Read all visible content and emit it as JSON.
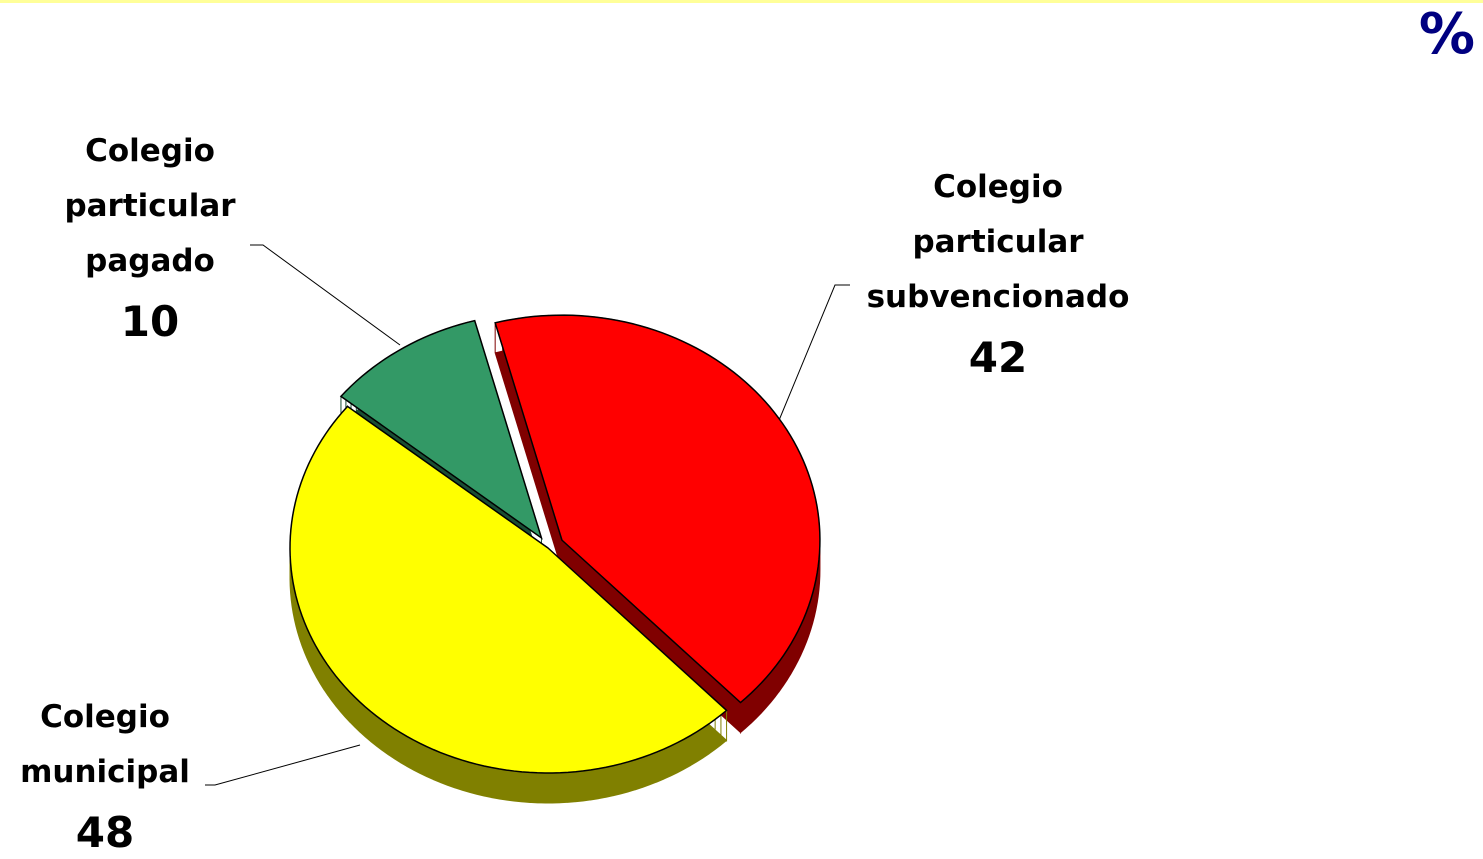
{
  "chart_data": {
    "type": "pie",
    "unit": "%",
    "categories": [
      "Colegio particular subvencionado",
      "Colegio municipal",
      "Colegio particular pagado"
    ],
    "values": [
      42,
      48,
      10
    ],
    "colors": [
      "#ff0000",
      "#ffff00",
      "#339966"
    ]
  }
}
